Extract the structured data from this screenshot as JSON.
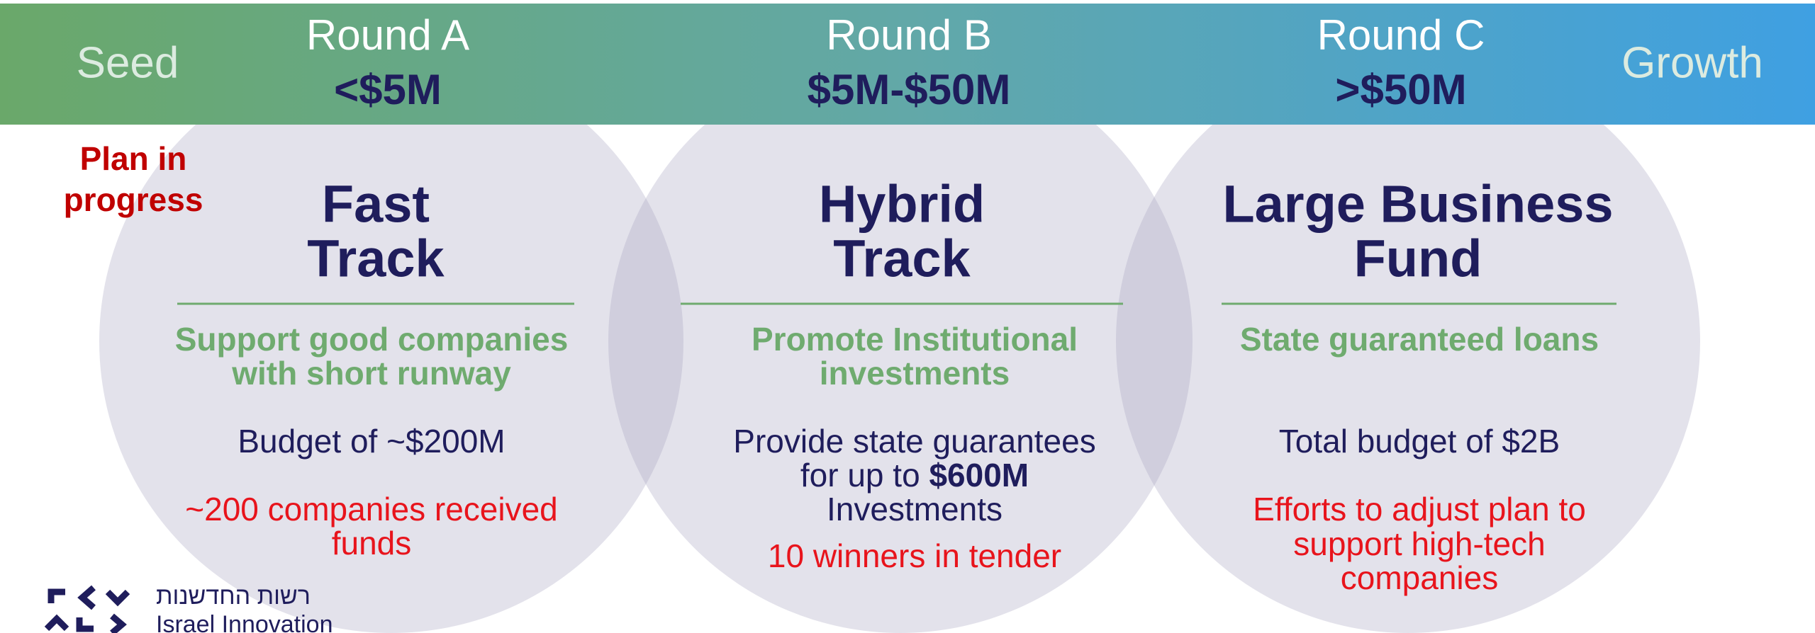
{
  "header": {
    "left_label": "Seed",
    "right_label": "Growth",
    "rounds": [
      {
        "name": "Round A",
        "range": "<$5M"
      },
      {
        "name": "Round B",
        "range": "$5M-$50M"
      },
      {
        "name": "Round C",
        "range": ">$50M"
      }
    ]
  },
  "status_note": [
    "Plan in",
    "progress"
  ],
  "columns": [
    {
      "title": [
        "Fast",
        "Track"
      ],
      "subtitle": [
        "Support good companies",
        "with short runway"
      ],
      "details": [
        [
          "Budget of ~$200M"
        ]
      ],
      "outcome": [
        "~200 companies received",
        "funds"
      ]
    },
    {
      "title": [
        "Hybrid",
        "Track"
      ],
      "subtitle": [
        "Promote Institutional",
        "investments"
      ],
      "details": [
        [
          "Provide state guarantees"
        ],
        [
          "for up to ",
          "$600M"
        ],
        [
          "Investments"
        ]
      ],
      "outcome": [
        "10 winners in tender"
      ]
    },
    {
      "title": [
        "Large Business",
        "Fund"
      ],
      "subtitle": [
        "State guaranteed loans"
      ],
      "details": [
        [
          "Total budget of $2B"
        ]
      ],
      "outcome": [
        "Efforts to adjust plan to",
        "support high-tech",
        "companies"
      ]
    }
  ],
  "logo": {
    "hebrew": "רשות החדשנות",
    "english": "Israel Innovation"
  }
}
